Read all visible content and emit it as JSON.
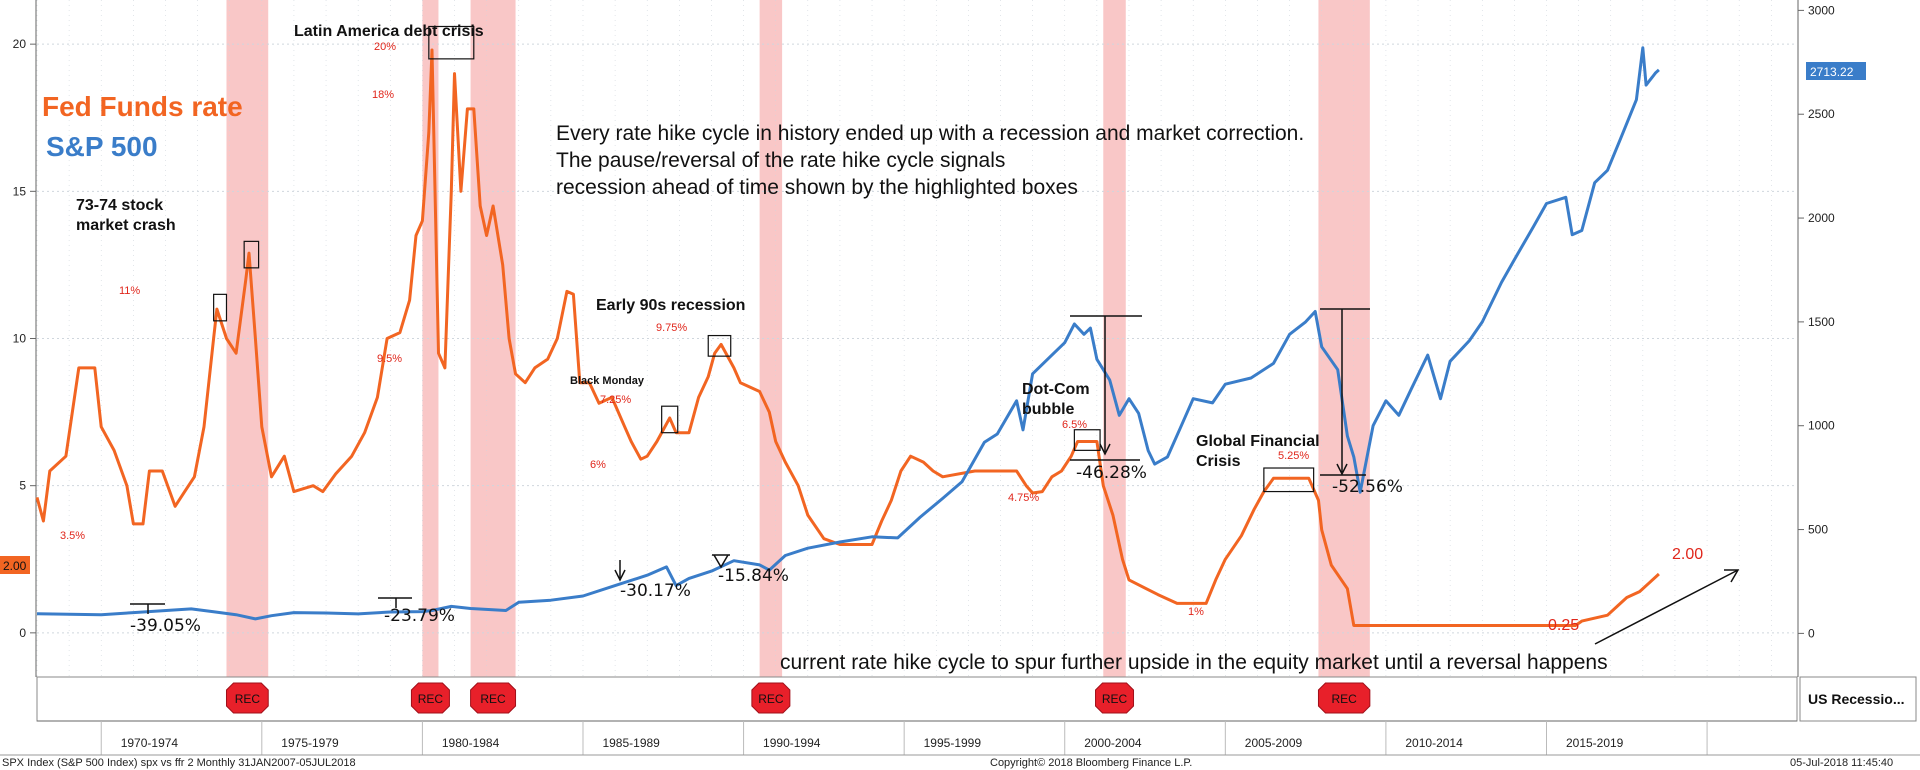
{
  "colors": {
    "fed_funds": "#f26522",
    "sp500": "#3a7dc9",
    "recession_band": "#f7b4b4",
    "annotation_red": "#e0261b",
    "rec_badge": "#e8202a",
    "grid": "#cfd6dd",
    "text": "#111111"
  },
  "legend": {
    "fed_funds": "Fed Funds rate",
    "sp500": "S&P 500"
  },
  "headline": {
    "line1": "Every rate hike cycle in history ended up with a recession and market correction.",
    "line2": "The pause/reversal of the rate hike cycle signals",
    "line3": "recession ahead of time shown by the highlighted boxes"
  },
  "footer_note": "current rate hike cycle to spur further upside in the equity market until a reversal happens",
  "status_bar": {
    "left": "SPX Index (S&P 500 Index) spx vs ffr 2  Monthly 31JAN2007-05JUL2018",
    "center": "Copyright© 2018 Bloomberg Finance L.P.",
    "right": "05-Jul-2018 11:45:40"
  },
  "recession_panel_label": "US Recessio...",
  "rec_badge_text": "REC",
  "current_values": {
    "ffr": "2.00",
    "spx": "2713.22"
  },
  "chart_data": {
    "type": "line",
    "x_range": [
      1968.0,
      2022.8
    ],
    "x_tick_labels": [
      "1970-1974",
      "1975-1979",
      "1980-1984",
      "1985-1989",
      "1990-1994",
      "1995-1999",
      "2000-2004",
      "2005-2009",
      "2010-2014",
      "2015-2019"
    ],
    "x_tick_centers": [
      1971.5,
      1976.5,
      1981.5,
      1986.5,
      1991.5,
      1996.5,
      2001.5,
      2006.5,
      2011.5,
      2016.5
    ],
    "left_axis": {
      "ylim": [
        -1.5,
        21.5
      ],
      "ticks": [
        0,
        5,
        10,
        15,
        20
      ]
    },
    "right_axis": {
      "ylim": [
        -210,
        3050
      ],
      "ticks": [
        0,
        500,
        1000,
        1500,
        2000,
        2500,
        3000
      ]
    },
    "recessions": [
      [
        1973.9,
        1975.2
      ],
      [
        1980.0,
        1980.5
      ],
      [
        1981.5,
        1982.9
      ],
      [
        1990.5,
        1991.2
      ],
      [
        2001.2,
        2001.9
      ],
      [
        2007.9,
        2009.5
      ]
    ],
    "series": [
      {
        "name": "Fed Funds rate",
        "axis": "left",
        "points": [
          [
            1968.0,
            4.6
          ],
          [
            1968.2,
            3.8
          ],
          [
            1968.4,
            5.5
          ],
          [
            1968.9,
            6.0
          ],
          [
            1969.3,
            9.0
          ],
          [
            1969.8,
            9.0
          ],
          [
            1970.0,
            7.0
          ],
          [
            1970.4,
            6.2
          ],
          [
            1970.8,
            5.0
          ],
          [
            1971.0,
            3.7
          ],
          [
            1971.3,
            3.7
          ],
          [
            1971.5,
            5.5
          ],
          [
            1971.9,
            5.5
          ],
          [
            1972.3,
            4.3
          ],
          [
            1972.6,
            4.8
          ],
          [
            1972.9,
            5.3
          ],
          [
            1973.2,
            7.0
          ],
          [
            1973.5,
            10.0
          ],
          [
            1973.6,
            11.0
          ],
          [
            1973.9,
            10.0
          ],
          [
            1974.2,
            9.5
          ],
          [
            1974.5,
            12.0
          ],
          [
            1974.6,
            12.9
          ],
          [
            1974.8,
            10.0
          ],
          [
            1975.0,
            7.0
          ],
          [
            1975.3,
            5.3
          ],
          [
            1975.7,
            6.0
          ],
          [
            1976.0,
            4.8
          ],
          [
            1976.6,
            5.0
          ],
          [
            1976.9,
            4.8
          ],
          [
            1977.3,
            5.4
          ],
          [
            1977.8,
            6.0
          ],
          [
            1978.2,
            6.8
          ],
          [
            1978.6,
            8.0
          ],
          [
            1978.9,
            10.0
          ],
          [
            1979.3,
            10.2
          ],
          [
            1979.6,
            11.3
          ],
          [
            1979.8,
            13.5
          ],
          [
            1980.0,
            14.0
          ],
          [
            1980.2,
            17.0
          ],
          [
            1980.3,
            19.8
          ],
          [
            1980.5,
            9.5
          ],
          [
            1980.7,
            9.0
          ],
          [
            1980.9,
            15.0
          ],
          [
            1981.0,
            19.0
          ],
          [
            1981.2,
            15.0
          ],
          [
            1981.4,
            17.8
          ],
          [
            1981.6,
            17.8
          ],
          [
            1981.8,
            14.5
          ],
          [
            1982.0,
            13.5
          ],
          [
            1982.2,
            14.5
          ],
          [
            1982.5,
            12.5
          ],
          [
            1982.7,
            10.0
          ],
          [
            1982.9,
            8.8
          ],
          [
            1983.2,
            8.5
          ],
          [
            1983.5,
            9.0
          ],
          [
            1983.9,
            9.3
          ],
          [
            1984.2,
            10.0
          ],
          [
            1984.5,
            11.6
          ],
          [
            1984.7,
            11.5
          ],
          [
            1984.9,
            8.5
          ],
          [
            1985.2,
            8.5
          ],
          [
            1985.5,
            7.8
          ],
          [
            1985.9,
            8.0
          ],
          [
            1986.3,
            7.0
          ],
          [
            1986.5,
            6.5
          ],
          [
            1986.8,
            5.9
          ],
          [
            1987.0,
            6.0
          ],
          [
            1987.3,
            6.5
          ],
          [
            1987.7,
            7.3
          ],
          [
            1987.9,
            6.8
          ],
          [
            1988.3,
            6.8
          ],
          [
            1988.6,
            8.0
          ],
          [
            1988.9,
            8.7
          ],
          [
            1989.1,
            9.5
          ],
          [
            1989.3,
            9.8
          ],
          [
            1989.7,
            9.0
          ],
          [
            1989.9,
            8.5
          ],
          [
            1990.5,
            8.2
          ],
          [
            1990.8,
            7.5
          ],
          [
            1991.0,
            6.5
          ],
          [
            1991.3,
            5.8
          ],
          [
            1991.7,
            5.0
          ],
          [
            1992.0,
            4.0
          ],
          [
            1992.5,
            3.2
          ],
          [
            1993.0,
            3.0
          ],
          [
            1994.0,
            3.0
          ],
          [
            1994.3,
            3.8
          ],
          [
            1994.6,
            4.5
          ],
          [
            1994.9,
            5.5
          ],
          [
            1995.2,
            6.0
          ],
          [
            1995.6,
            5.8
          ],
          [
            1995.9,
            5.5
          ],
          [
            1996.2,
            5.3
          ],
          [
            1997.2,
            5.5
          ],
          [
            1998.5,
            5.5
          ],
          [
            1998.8,
            5.0
          ],
          [
            1999.0,
            4.75
          ],
          [
            1999.3,
            4.8
          ],
          [
            1999.6,
            5.3
          ],
          [
            1999.9,
            5.5
          ],
          [
            2000.2,
            6.0
          ],
          [
            2000.4,
            6.5
          ],
          [
            2001.0,
            6.5
          ],
          [
            2001.2,
            5.0
          ],
          [
            2001.5,
            4.0
          ],
          [
            2001.8,
            2.5
          ],
          [
            2002.0,
            1.8
          ],
          [
            2002.9,
            1.3
          ],
          [
            2003.5,
            1.0
          ],
          [
            2004.4,
            1.0
          ],
          [
            2004.7,
            1.8
          ],
          [
            2005.0,
            2.5
          ],
          [
            2005.5,
            3.3
          ],
          [
            2005.9,
            4.2
          ],
          [
            2006.2,
            4.8
          ],
          [
            2006.5,
            5.25
          ],
          [
            2007.6,
            5.25
          ],
          [
            2007.9,
            4.5
          ],
          [
            2008.0,
            3.5
          ],
          [
            2008.3,
            2.3
          ],
          [
            2008.8,
            1.5
          ],
          [
            2009.0,
            0.25
          ],
          [
            2015.9,
            0.25
          ],
          [
            2016.1,
            0.4
          ],
          [
            2016.9,
            0.6
          ],
          [
            2017.2,
            0.9
          ],
          [
            2017.5,
            1.2
          ],
          [
            2017.9,
            1.4
          ],
          [
            2018.2,
            1.7
          ],
          [
            2018.5,
            2.0
          ]
        ]
      },
      {
        "name": "S&P 500",
        "axis": "right",
        "points": [
          [
            1968.0,
            95
          ],
          [
            1970.0,
            90
          ],
          [
            1971.0,
            100
          ],
          [
            1972.8,
            118
          ],
          [
            1973.5,
            104
          ],
          [
            1974.2,
            90
          ],
          [
            1974.8,
            70
          ],
          [
            1975.3,
            85
          ],
          [
            1976.0,
            100
          ],
          [
            1977.0,
            98
          ],
          [
            1978.0,
            94
          ],
          [
            1979.0,
            103
          ],
          [
            1980.0,
            105
          ],
          [
            1980.3,
            110
          ],
          [
            1980.9,
            130
          ],
          [
            1981.5,
            120
          ],
          [
            1982.6,
            110
          ],
          [
            1983.0,
            150
          ],
          [
            1984.0,
            160
          ],
          [
            1985.0,
            180
          ],
          [
            1986.0,
            230
          ],
          [
            1987.0,
            280
          ],
          [
            1987.6,
            320
          ],
          [
            1987.9,
            230
          ],
          [
            1988.3,
            265
          ],
          [
            1989.0,
            300
          ],
          [
            1989.7,
            350
          ],
          [
            1990.5,
            330
          ],
          [
            1990.8,
            305
          ],
          [
            1991.3,
            375
          ],
          [
            1992.0,
            410
          ],
          [
            1993.0,
            440
          ],
          [
            1994.0,
            465
          ],
          [
            1994.8,
            460
          ],
          [
            1995.5,
            560
          ],
          [
            1996.2,
            650
          ],
          [
            1996.8,
            730
          ],
          [
            1997.5,
            920
          ],
          [
            1997.9,
            960
          ],
          [
            1998.5,
            1120
          ],
          [
            1998.7,
            980
          ],
          [
            1999.0,
            1250
          ],
          [
            1999.6,
            1340
          ],
          [
            2000.0,
            1400
          ],
          [
            2000.3,
            1490
          ],
          [
            2000.6,
            1440
          ],
          [
            2000.8,
            1470
          ],
          [
            2001.0,
            1320
          ],
          [
            2001.4,
            1220
          ],
          [
            2001.7,
            1050
          ],
          [
            2002.0,
            1130
          ],
          [
            2002.3,
            1060
          ],
          [
            2002.6,
            880
          ],
          [
            2002.8,
            815
          ],
          [
            2003.2,
            850
          ],
          [
            2003.6,
            990
          ],
          [
            2004.0,
            1130
          ],
          [
            2004.6,
            1110
          ],
          [
            2005.0,
            1200
          ],
          [
            2005.8,
            1230
          ],
          [
            2006.5,
            1300
          ],
          [
            2007.0,
            1440
          ],
          [
            2007.5,
            1500
          ],
          [
            2007.8,
            1550
          ],
          [
            2008.0,
            1380
          ],
          [
            2008.5,
            1270
          ],
          [
            2008.8,
            950
          ],
          [
            2009.0,
            850
          ],
          [
            2009.2,
            680
          ],
          [
            2009.6,
            1000
          ],
          [
            2010.0,
            1120
          ],
          [
            2010.4,
            1050
          ],
          [
            2010.8,
            1180
          ],
          [
            2011.3,
            1340
          ],
          [
            2011.7,
            1130
          ],
          [
            2012.0,
            1310
          ],
          [
            2012.6,
            1410
          ],
          [
            2013.0,
            1500
          ],
          [
            2013.6,
            1690
          ],
          [
            2014.0,
            1800
          ],
          [
            2014.6,
            1960
          ],
          [
            2015.0,
            2070
          ],
          [
            2015.6,
            2100
          ],
          [
            2015.8,
            1920
          ],
          [
            2016.1,
            1940
          ],
          [
            2016.5,
            2170
          ],
          [
            2016.9,
            2230
          ],
          [
            2017.3,
            2380
          ],
          [
            2017.8,
            2570
          ],
          [
            2018.0,
            2820
          ],
          [
            2018.1,
            2640
          ],
          [
            2018.4,
            2700
          ],
          [
            2018.5,
            2713.22
          ]
        ]
      }
    ],
    "annotations": [
      {
        "text": "Latin America debt crisis",
        "kind": "title"
      },
      {
        "text": "73-74 stock",
        "kind": "title"
      },
      {
        "text": "market crash",
        "kind": "title"
      },
      {
        "text": "Early 90s recession",
        "kind": "title"
      },
      {
        "text": "Black Monday",
        "kind": "small"
      },
      {
        "text": "Dot-Com",
        "kind": "title"
      },
      {
        "text": "bubble",
        "kind": "title"
      },
      {
        "text": "Global Financial",
        "kind": "title"
      },
      {
        "text": "Crisis",
        "kind": "title"
      }
    ],
    "rate_labels": [
      "3.5%",
      "11%",
      "20%",
      "18%",
      "9.5%",
      "6%",
      "7.25%",
      "9.75%",
      "4.75%",
      "6.5%",
      "1%",
      "5.25%",
      "0.25",
      "2.00"
    ],
    "drawdowns": [
      "-39.05%",
      "-23.79%",
      "-30.17%",
      "-15.84%",
      "-46.28%",
      "-52.56%"
    ]
  }
}
